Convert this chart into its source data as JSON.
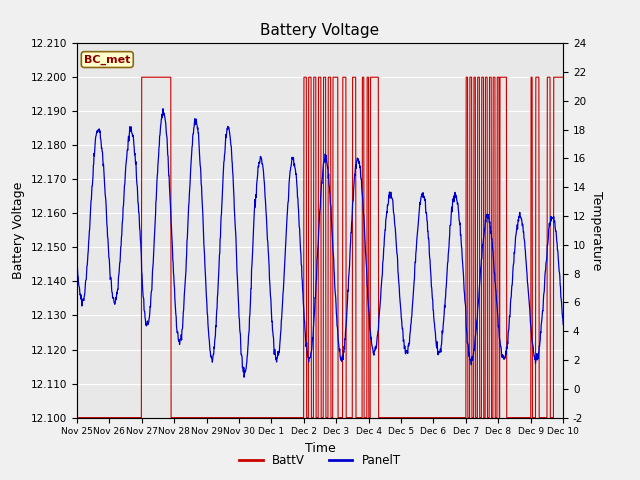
{
  "title": "Battery Voltage",
  "xlabel": "Time",
  "ylabel_left": "Battery Voltage",
  "ylabel_right": "Temperature",
  "legend_label": "BC_met",
  "legend_label_batt": "BattV",
  "legend_label_panel": "PanelT",
  "ylim_left": [
    12.1,
    12.21
  ],
  "ylim_right": [
    -2,
    24
  ],
  "yticks_left": [
    12.1,
    12.11,
    12.12,
    12.13,
    12.14,
    12.15,
    12.16,
    12.17,
    12.18,
    12.19,
    12.2,
    12.21
  ],
  "yticks_right": [
    -2,
    0,
    2,
    4,
    6,
    8,
    10,
    12,
    14,
    16,
    18,
    20,
    22,
    24
  ],
  "background_color": "#f0f0f0",
  "plot_bg_color": "#e8e8e8",
  "grid_color": "#ffffff",
  "batt_color": "#cc0000",
  "panel_color": "#0000cc",
  "title_fontsize": 11,
  "axis_fontsize": 9,
  "xtick_labels": [
    "Nov 25",
    "Nov 26",
    "Nov 27",
    "Nov 28",
    "Nov 29",
    "Nov 30",
    "Dec 1",
    "Dec 2",
    "Dec 3",
    "Dec 4",
    "Dec 5",
    "Dec 6",
    "Dec 7",
    "Dec 8",
    "Dec 9",
    "Dec 10"
  ],
  "xtick_positions": [
    0,
    1,
    2,
    3,
    4,
    5,
    6,
    7,
    8,
    9,
    10,
    11,
    12,
    13,
    14,
    15
  ]
}
